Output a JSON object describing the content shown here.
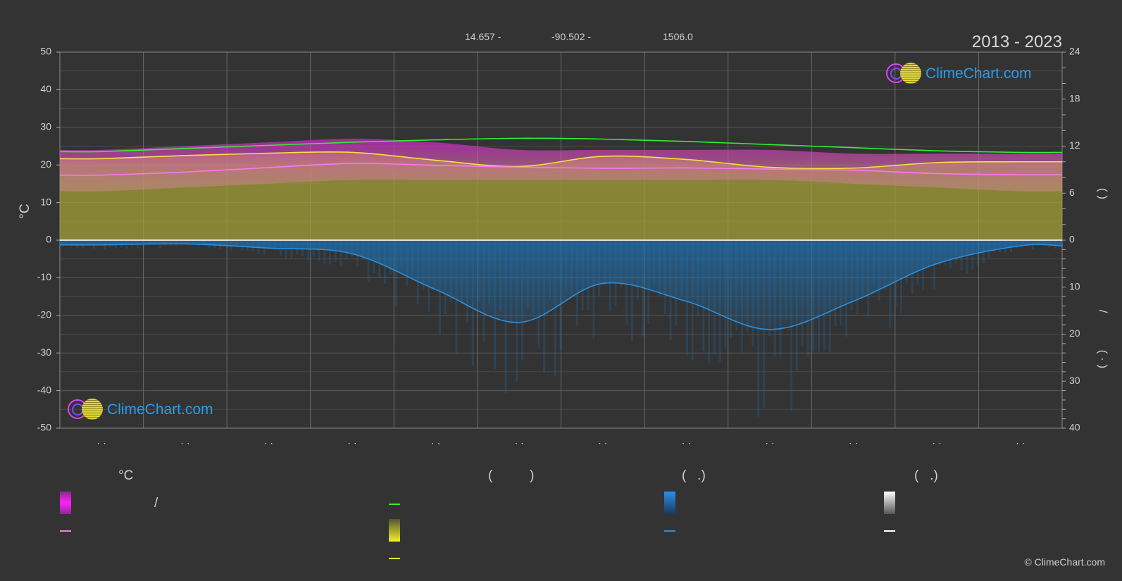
{
  "header": {
    "latitude": "14.657 -",
    "longitude": "-90.502 -",
    "elevation": "1506.0",
    "years": "2013 - 2023"
  },
  "logo_text": "ClimeChart.com",
  "axes": {
    "left_label": "°C",
    "right_upper_label": "(   )",
    "right_lower_label": "/",
    "right_lower_label2": "( · )",
    "left_ticks": [
      "50",
      "40",
      "30",
      "20",
      "10",
      "0",
      "-10",
      "-20",
      "-30",
      "-40",
      "-50"
    ],
    "right_upper_ticks": [
      "24",
      "18",
      "12",
      "6",
      "0"
    ],
    "right_lower_ticks": [
      "10",
      "20",
      "30",
      "40"
    ],
    "month_labels": [
      "· ·",
      "· ·",
      "· ·",
      "· ·",
      "· ·",
      "· ·",
      "· ·",
      "· ·",
      "· ·",
      "· ·",
      "· ·",
      "· ·"
    ]
  },
  "legend": {
    "col1_head": "°C",
    "col2_head": "(          )",
    "col3_head": "(   .)",
    "col4_head": "(   .)",
    "col1_item1": "/"
  },
  "colors": {
    "background": "#333333",
    "daylight": "#33ee33",
    "sunshine": "#f5e342",
    "mean_temp": "#ff77ee",
    "temp_band": "#e020e0",
    "sun_band": "#c8c430",
    "precip": "#2a8fdd",
    "logo_blue": "#2b9be8"
  },
  "chart_data": {
    "type": "line",
    "x_categories": [
      "Jan",
      "Feb",
      "Mar",
      "Apr",
      "May",
      "Jun",
      "Jul",
      "Aug",
      "Sep",
      "Oct",
      "Nov",
      "Dec"
    ],
    "left_axis": {
      "unit": "°C",
      "ylim": [
        -50,
        50
      ]
    },
    "right_upper_axis": {
      "unit": "hours",
      "ylim": [
        0,
        24
      ]
    },
    "right_lower_axis": {
      "unit": "mm/day",
      "ylim": [
        0,
        40
      ],
      "inverted": true
    },
    "series": [
      {
        "key": "daylight",
        "axis": "hours",
        "values": [
          11.3,
          11.7,
          12.1,
          12.5,
          12.8,
          13.0,
          12.9,
          12.6,
          12.2,
          11.8,
          11.4,
          11.2
        ]
      },
      {
        "key": "sunshine",
        "axis": "hours",
        "values": [
          10.4,
          10.8,
          11.1,
          11.2,
          10.2,
          9.4,
          10.7,
          10.3,
          9.3,
          9.2,
          9.9,
          10.0
        ]
      },
      {
        "key": "mean_temp",
        "axis": "°C",
        "values": [
          17.3,
          18.1,
          19.3,
          20.4,
          19.9,
          19.4,
          19.1,
          19.2,
          18.9,
          18.6,
          17.7,
          17.4
        ]
      },
      {
        "key": "temp_max",
        "axis": "°C",
        "values": [
          24,
          25,
          26,
          27,
          26,
          24,
          24,
          24,
          24,
          23,
          23,
          23
        ]
      },
      {
        "key": "temp_min",
        "axis": "°C",
        "values": [
          13,
          14,
          15,
          16,
          16,
          16,
          16,
          16,
          16,
          15,
          14,
          13
        ]
      },
      {
        "key": "precipitation",
        "axis": "mm/day",
        "values": [
          1.0,
          0.8,
          1.7,
          2.9,
          10.5,
          17.5,
          9.2,
          13.0,
          19.0,
          13.0,
          5.0,
          1.2
        ]
      }
    ]
  },
  "copyright": "© ClimeChart.com"
}
